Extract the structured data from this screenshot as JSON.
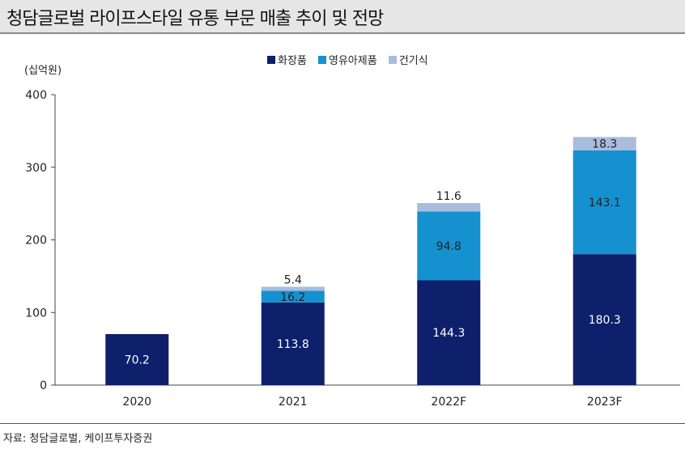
{
  "title": "청담글로벌 라이프스타일 유통 부문 매출 추이 및 전망",
  "source": "자료: 청담글로벌, 케이프투자증권",
  "chart_data": {
    "type": "bar",
    "stacked": true,
    "ylabel": "(십억원)",
    "ylim": [
      0,
      400
    ],
    "yticks": [
      0,
      100,
      200,
      300,
      400
    ],
    "grid": false,
    "legend_placement": "top",
    "categories": [
      "2020",
      "2021",
      "2022F",
      "2023F"
    ],
    "series": [
      {
        "name": "화장품",
        "color": "#0e1f6b",
        "label_color": "#ffffff",
        "values": [
          70.2,
          113.8,
          144.3,
          180.3
        ]
      },
      {
        "name": "영유아제품",
        "color": "#1591cf",
        "label_color": "#222222",
        "values": [
          null,
          16.2,
          94.8,
          143.1
        ]
      },
      {
        "name": "건기식",
        "color": "#a9bcdc",
        "label_color": "#222222",
        "values": [
          null,
          5.4,
          11.6,
          18.3
        ]
      }
    ]
  }
}
